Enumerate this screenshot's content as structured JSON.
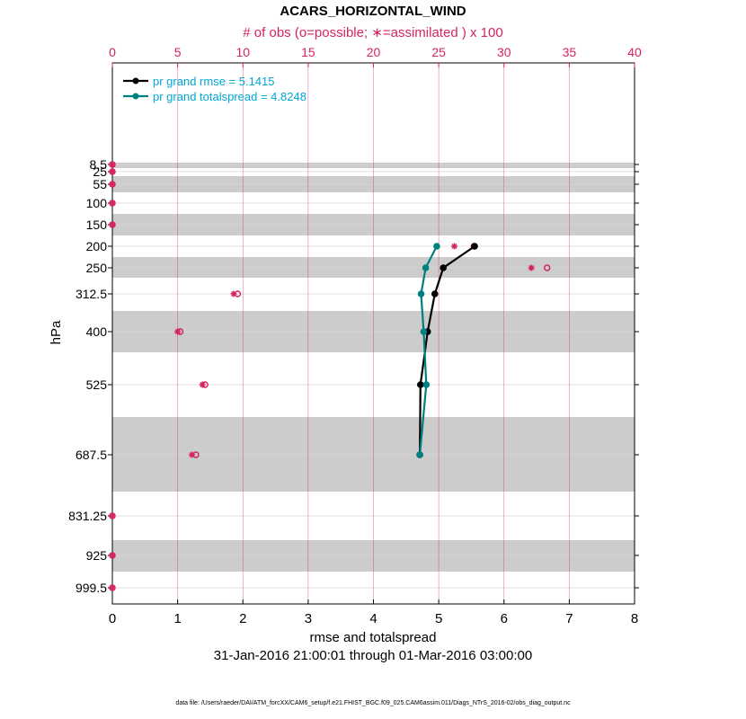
{
  "chart_data": {
    "type": "line",
    "title": "ACARS_HORIZONTAL_WIND",
    "top_axis_label": "# of obs (o=possible; ∗=assimilated ) x 100",
    "xlabel": "rmse and totalspread",
    "date_range": "31-Jan-2016 21:00:01 through 01-Mar-2016 03:00:00",
    "ylabel": "hPa",
    "footer": "data file: /Users/raeder/DAI/ATM_forcXX/CAM6_setup/f.e21.FHIST_BGC.f09_025.CAM6assim.011/Diags_NTrS_2016-02/obs_diag_output.nc",
    "xlim": [
      0,
      8
    ],
    "x_ticks": [
      "0",
      "1",
      "2",
      "3",
      "4",
      "5",
      "6",
      "7",
      "8"
    ],
    "top_xlim": [
      0,
      40
    ],
    "top_ticks": [
      "0",
      "5",
      "10",
      "15",
      "20",
      "25",
      "30",
      "35",
      "40"
    ],
    "levels": [
      8.5,
      25,
      55,
      100,
      150,
      200,
      250,
      312.5,
      400,
      525,
      687.5,
      831.25,
      925,
      999.5
    ],
    "level_labels": [
      "8.5",
      "25",
      "55",
      "100",
      "150",
      "200",
      "250",
      "312.5",
      "400",
      "525",
      "687.5",
      "831.25",
      "925",
      "999.5"
    ],
    "series": [
      {
        "name": "pr grand rmse",
        "legend": "pr grand rmse = 5.1415",
        "color": "#000000",
        "levels": [
          200,
          250,
          312.5,
          400,
          525,
          687.5
        ],
        "values": [
          5.55,
          5.07,
          4.94,
          4.83,
          4.72,
          4.71
        ]
      },
      {
        "name": "pr grand totalspread",
        "legend": "pr grand totalspread = 4.8248",
        "color": "#007f7f",
        "levels": [
          200,
          250,
          312.5,
          400,
          525,
          687.5
        ],
        "values": [
          4.97,
          4.8,
          4.73,
          4.77,
          4.81,
          4.71
        ]
      }
    ],
    "obs_counts": {
      "levels": [
        8.5,
        25,
        55,
        100,
        150,
        200,
        250,
        312.5,
        400,
        525,
        687.5,
        831.25,
        925,
        999.5
      ],
      "possible": [
        0,
        0,
        0,
        0,
        0,
        27.7,
        33.3,
        9.6,
        5.2,
        7.1,
        6.4,
        0,
        0,
        0
      ],
      "assimilated": [
        0,
        0,
        0,
        0,
        0,
        26.2,
        32.1,
        9.3,
        5.0,
        6.9,
        6.1,
        0,
        0,
        0
      ],
      "color": "#d6245c"
    }
  }
}
